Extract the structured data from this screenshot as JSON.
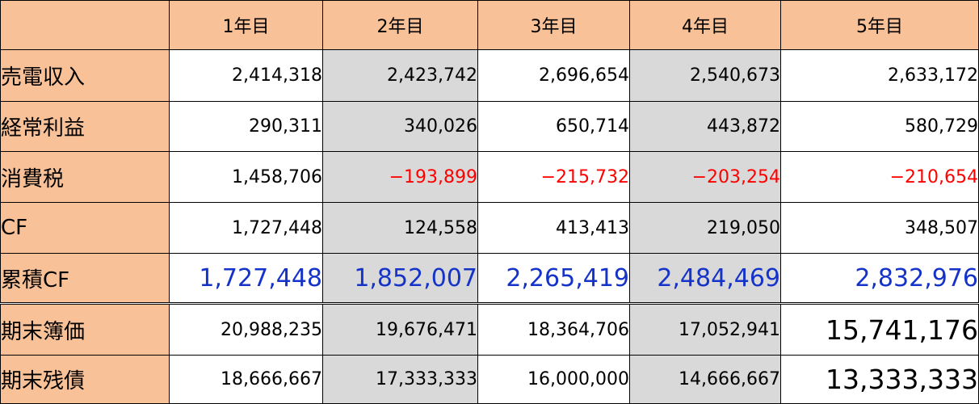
{
  "header": {
    "years": [
      "1年目",
      "2年目",
      "3年目",
      "4年目",
      "5年目"
    ]
  },
  "rows": [
    {
      "label": "売電収入",
      "values": [
        "2,414,318",
        "2,423,742",
        "2,696,654",
        "2,540,673",
        "2,633,172"
      ]
    },
    {
      "label": "経常利益",
      "values": [
        "290,311",
        "340,026",
        "650,714",
        "443,872",
        "580,729"
      ]
    },
    {
      "label": "消費税",
      "values": [
        "1,458,706",
        "−193,899",
        "−215,732",
        "−203,254",
        "−210,654"
      ]
    },
    {
      "label": "CF",
      "values": [
        "1,727,448",
        "124,558",
        "413,413",
        "219,050",
        "348,507"
      ]
    },
    {
      "label": "累積CF",
      "values": [
        "1,727,448",
        "1,852,007",
        "2,265,419",
        "2,484,469",
        "2,832,976"
      ]
    },
    {
      "label": "期末簿価",
      "values": [
        "20,988,235",
        "19,676,471",
        "18,364,706",
        "17,052,941",
        "15,741,176"
      ]
    },
    {
      "label": "期末残債",
      "values": [
        "18,666,667",
        "17,333,333",
        "16,000,000",
        "14,666,667",
        "13,333,333"
      ]
    }
  ],
  "colors": {
    "header_bg": "#f8c197",
    "shaded_column_bg": "#d9d9d9",
    "negative_text": "#ff0000",
    "cumulative_text": "#1533c8"
  }
}
